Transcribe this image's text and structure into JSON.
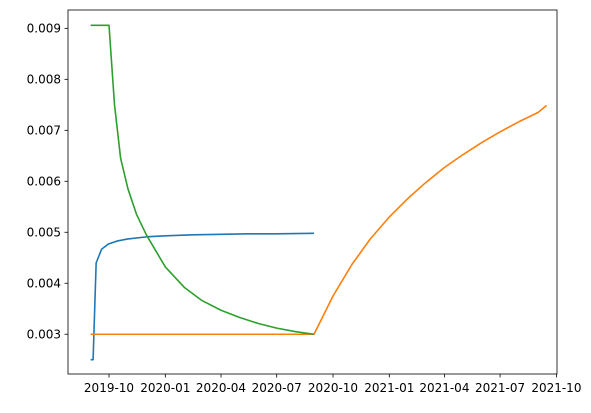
{
  "chart_data": {
    "type": "line",
    "title": "",
    "xlabel": "",
    "ylabel": "",
    "grid": false,
    "x_axis": {
      "type": "date",
      "range": [
        "2019-07-26",
        "2021-10-02"
      ],
      "ticks": [
        {
          "date": "2019-10-01",
          "label": "2019-10"
        },
        {
          "date": "2020-01-01",
          "label": "2020-01"
        },
        {
          "date": "2020-04-01",
          "label": "2020-04"
        },
        {
          "date": "2020-07-01",
          "label": "2020-07"
        },
        {
          "date": "2020-10-01",
          "label": "2020-10"
        },
        {
          "date": "2021-01-01",
          "label": "2021-01"
        },
        {
          "date": "2021-04-01",
          "label": "2021-04"
        },
        {
          "date": "2021-07-01",
          "label": "2021-07"
        },
        {
          "date": "2021-10-01",
          "label": "2021-10"
        }
      ]
    },
    "y_axis": {
      "range": [
        0.00222,
        0.00936
      ],
      "ticks": [
        {
          "value": 0.003,
          "label": "0.003"
        },
        {
          "value": 0.004,
          "label": "0.004"
        },
        {
          "value": 0.005,
          "label": "0.005"
        },
        {
          "value": 0.006,
          "label": "0.006"
        },
        {
          "value": 0.007,
          "label": "0.007"
        },
        {
          "value": 0.008,
          "label": "0.008"
        },
        {
          "value": 0.009,
          "label": "0.009"
        }
      ]
    },
    "series": [
      {
        "color": "#1f77b4",
        "points": [
          [
            "2019-09-01",
            0.0025
          ],
          [
            "2019-09-05",
            0.0025
          ],
          [
            "2019-09-10",
            0.0044
          ],
          [
            "2019-09-19",
            0.00467
          ],
          [
            "2019-09-30",
            0.00477
          ],
          [
            "2019-10-15",
            0.00483
          ],
          [
            "2019-11-01",
            0.00487
          ],
          [
            "2019-12-01",
            0.00491
          ],
          [
            "2020-01-01",
            0.00493
          ],
          [
            "2020-02-15",
            0.00495
          ],
          [
            "2020-04-01",
            0.00496
          ],
          [
            "2020-05-15",
            0.00497
          ],
          [
            "2020-07-01",
            0.00497
          ],
          [
            "2020-08-31",
            0.00498
          ]
        ]
      },
      {
        "color": "#ff7f0e",
        "points": [
          [
            "2019-09-01",
            0.003
          ],
          [
            "2020-08-31",
            0.003
          ],
          [
            "2020-10-01",
            0.00375
          ],
          [
            "2020-11-01",
            0.00437
          ],
          [
            "2020-12-01",
            0.00487
          ],
          [
            "2021-01-01",
            0.0053
          ],
          [
            "2021-02-01",
            0.00567
          ],
          [
            "2021-03-01",
            0.00597
          ],
          [
            "2021-04-01",
            0.00627
          ],
          [
            "2021-05-01",
            0.00652
          ],
          [
            "2021-06-01",
            0.00676
          ],
          [
            "2021-07-01",
            0.00697
          ],
          [
            "2021-08-01",
            0.00717
          ],
          [
            "2021-09-01",
            0.00735
          ],
          [
            "2021-09-15",
            0.00749
          ]
        ]
      },
      {
        "color": "#2ca02c",
        "points": [
          [
            "2019-09-01",
            0.00906
          ],
          [
            "2019-10-01",
            0.00906
          ],
          [
            "2019-10-10",
            0.0075
          ],
          [
            "2019-10-20",
            0.00645
          ],
          [
            "2019-11-01",
            0.00585
          ],
          [
            "2019-11-15",
            0.00535
          ],
          [
            "2019-12-01",
            0.00495
          ],
          [
            "2020-01-01",
            0.00432
          ],
          [
            "2020-02-01",
            0.00392
          ],
          [
            "2020-03-01",
            0.00366
          ],
          [
            "2020-04-01",
            0.00347
          ],
          [
            "2020-05-01",
            0.00333
          ],
          [
            "2020-06-01",
            0.00321
          ],
          [
            "2020-07-01",
            0.00312
          ],
          [
            "2020-08-01",
            0.00305
          ],
          [
            "2020-08-31",
            0.003
          ]
        ]
      }
    ]
  }
}
